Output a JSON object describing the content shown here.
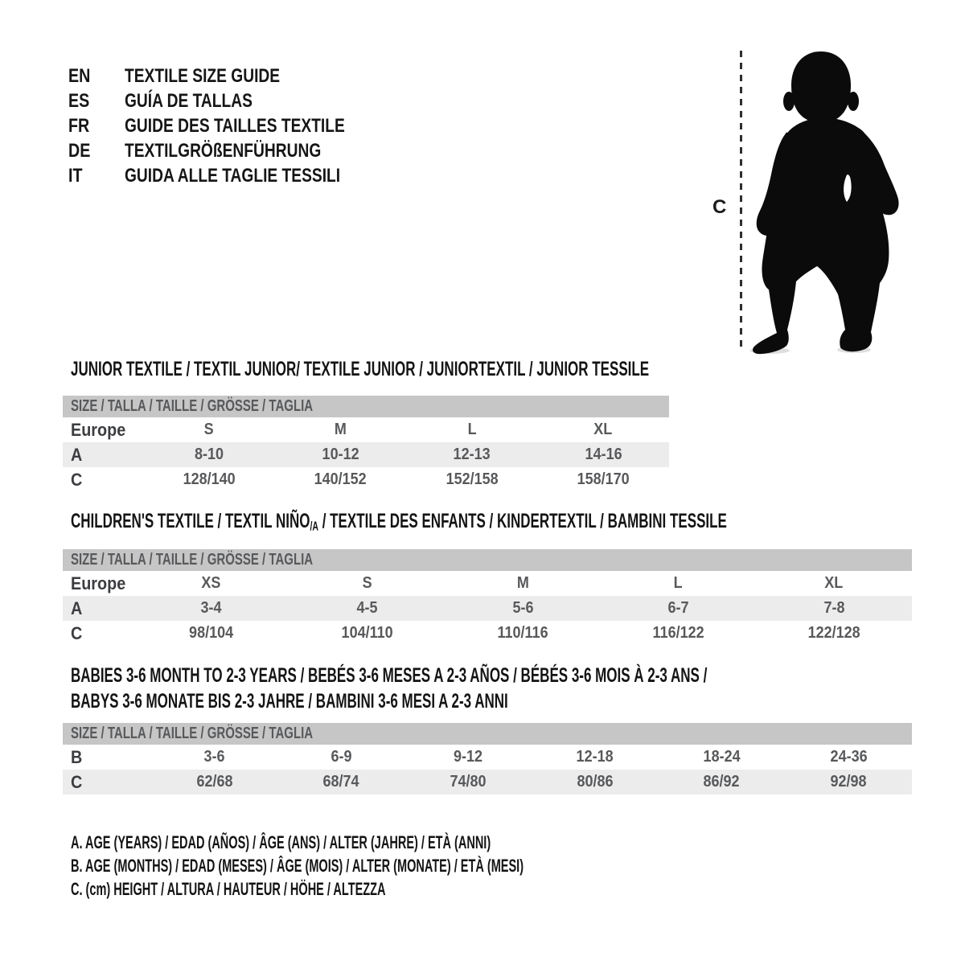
{
  "page": {
    "background": "#ffffff"
  },
  "colors": {
    "header_bar": "#c6c6c7",
    "row_shaded": "#ececed",
    "table_value_text": "#58595b",
    "row_label_text": "#3c3d40",
    "heading_text": "#141414",
    "silhouette": "#0b0b0b",
    "measure_line": "#2e2e2e"
  },
  "languages": {
    "items": [
      {
        "code": "EN",
        "label": "TEXTILE SIZE GUIDE"
      },
      {
        "code": "ES",
        "label": "GUÍA DE TALLAS"
      },
      {
        "code": "FR",
        "label": "GUIDE DES TAILLES TEXTILE"
      },
      {
        "code": "DE",
        "label": "TEXTILGRÖßENFÜHRUNG"
      },
      {
        "code": "IT",
        "label": "GUIDA ALLE TAGLIE TESSILI"
      }
    ]
  },
  "figure": {
    "description": "standing toddler silhouette",
    "measure_label": "C"
  },
  "tables": [
    {
      "title_lines": [
        [
          {
            "text": "JUNIOR TEXTILE / TEXTIL JUNIOR/ TEXTILE JUNIOR / JUNIORTEXTIL / JUNIOR TESSILE"
          }
        ]
      ],
      "size_header": "SIZE / TALLA / TAILLE / GRÖSSE / TAGLIA",
      "rows": [
        {
          "label": "Europe",
          "shaded": false,
          "values": [
            "S",
            "M",
            "L",
            "XL"
          ]
        },
        {
          "label": "A",
          "shaded": true,
          "values": [
            "8-10",
            "10-12",
            "12-13",
            "14-16"
          ]
        },
        {
          "label": "C",
          "shaded": false,
          "values": [
            "128/140",
            "140/152",
            "152/158",
            "158/170"
          ]
        }
      ]
    },
    {
      "title_lines": [
        [
          {
            "text": "CHILDREN'S TEXTILE / TEXTIL NIÑO"
          },
          {
            "text": "/A",
            "sub": true
          },
          {
            "text": " / TEXTILE DES ENFANTS / KINDERTEXTIL / BAMBINI TESSILE"
          }
        ]
      ],
      "size_header": "SIZE / TALLA / TAILLE / GRÖSSE / TAGLIA",
      "rows": [
        {
          "label": "Europe",
          "shaded": false,
          "values": [
            "XS",
            "S",
            "M",
            "L",
            "XL"
          ]
        },
        {
          "label": "A",
          "shaded": true,
          "values": [
            "3-4",
            "4-5",
            "5-6",
            "6-7",
            "7-8"
          ]
        },
        {
          "label": "C",
          "shaded": false,
          "values": [
            "98/104",
            "104/110",
            "110/116",
            "116/122",
            "122/128"
          ]
        }
      ]
    },
    {
      "title_lines": [
        [
          {
            "text": "BABIES 3-6 MONTH TO 2-3 YEARS / BEBÉS 3-6 MESES A 2-3 AÑOS / BÉBÉS 3-6 MOIS À 2-3 ANS /"
          }
        ],
        [
          {
            "text": "BABYS 3-6 MONATE BIS 2-3 JAHRE / BAMBINI 3-6 MESI A 2-3 ANNI"
          }
        ]
      ],
      "size_header": "SIZE / TALLA / TAILLE / GRÖSSE / TAGLIA",
      "rows": [
        {
          "label": "B",
          "shaded": false,
          "values": [
            "3-6",
            "6-9",
            "9-12",
            "12-18",
            "18-24",
            "24-36"
          ]
        },
        {
          "label": "C",
          "shaded": true,
          "values": [
            "62/68",
            "68/74",
            "74/80",
            "80/86",
            "86/92",
            "92/98"
          ]
        }
      ]
    }
  ],
  "legend": {
    "items": [
      "A. AGE (YEARS) / EDAD (AÑOS) / ÂGE (ANS) / ALTER (JAHRE) / ETÀ (ANNI)",
      "B. AGE (MONTHS) / EDAD (MESES) / ÂGE (MOIS) / ALTER (MONATE) / ETÀ (MESI)",
      "C. (cm) HEIGHT / ALTURA / HAUTEUR / HÖHE / ALTEZZA"
    ]
  }
}
